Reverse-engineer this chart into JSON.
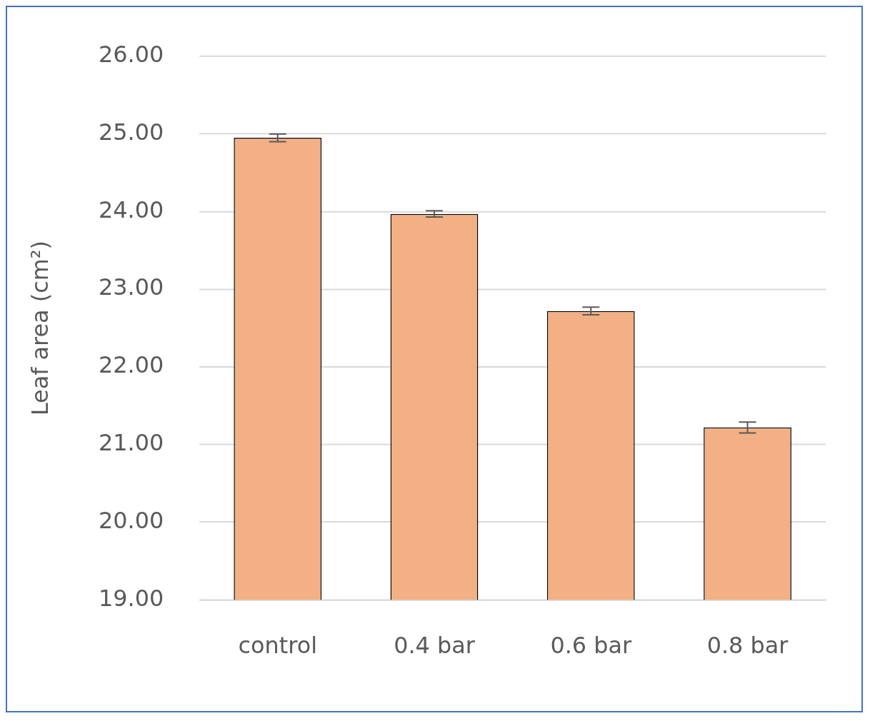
{
  "chart_data": {
    "type": "bar",
    "ylabel": "Leaf area (cm²)",
    "categories": [
      "control",
      "0.4 bar",
      "0.6 bar",
      "0.8 bar"
    ],
    "values": [
      24.95,
      23.97,
      22.72,
      21.22
    ],
    "errors": [
      0.05,
      0.04,
      0.05,
      0.07
    ],
    "color": "#f2b084",
    "ylim": [
      19,
      26
    ],
    "yticks": [
      {
        "value": 19,
        "label": "19.00"
      },
      {
        "value": 20,
        "label": "20.00"
      },
      {
        "value": 21,
        "label": "21.00"
      },
      {
        "value": 22,
        "label": "22.00"
      },
      {
        "value": 23,
        "label": "23.00"
      },
      {
        "value": 24,
        "label": "24.00"
      },
      {
        "value": 25,
        "label": "25.00"
      },
      {
        "value": 26,
        "label": "26.00"
      }
    ],
    "grid": "y"
  }
}
